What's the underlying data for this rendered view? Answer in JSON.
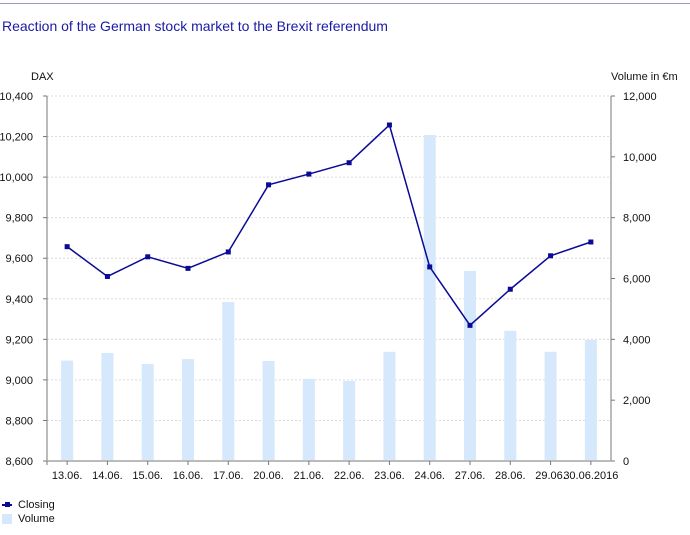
{
  "chart_data": {
    "type": "bar+line",
    "title": "Reaction of the German stock market to the Brexit referendum",
    "categories": [
      "13.06.",
      "14.06.",
      "15.06.",
      "16.06.",
      "17.06.",
      "20.06.",
      "21.06.",
      "22.06.",
      "23.06.",
      "24.06.",
      "27.06.",
      "28.06.",
      "29.06.",
      "30.06.2016"
    ],
    "series": [
      {
        "name": "Closing",
        "type": "line",
        "axis": "left",
        "color": "#0a0a96",
        "values": [
          9657,
          9510,
          9607,
          9550,
          9631,
          9962,
          10015,
          10071,
          10257,
          9557,
          9269,
          9447,
          9612,
          9680
        ]
      },
      {
        "name": "Volume",
        "type": "bar",
        "axis": "right",
        "color": "#d6e8fb",
        "values": [
          3300,
          3550,
          3190,
          3350,
          5230,
          3290,
          2700,
          2630,
          3590,
          10720,
          6250,
          4280,
          3590,
          3980
        ]
      }
    ],
    "ylabel_left": "DAX",
    "ylabel_right": "Volume in €m",
    "ylim_left": [
      8600,
      10400
    ],
    "ylim_right": [
      0,
      12000
    ],
    "yticks_left": [
      "8,600",
      "8,800",
      "9,000",
      "9,200",
      "9,400",
      "9,600",
      "9,800",
      "10,000",
      "10,200",
      "10,400"
    ],
    "yticks_right": [
      "0",
      "2,000",
      "4,000",
      "6,000",
      "8,000",
      "10,000",
      "12,000"
    ],
    "grid": true,
    "legend_position": "bottom-left"
  }
}
